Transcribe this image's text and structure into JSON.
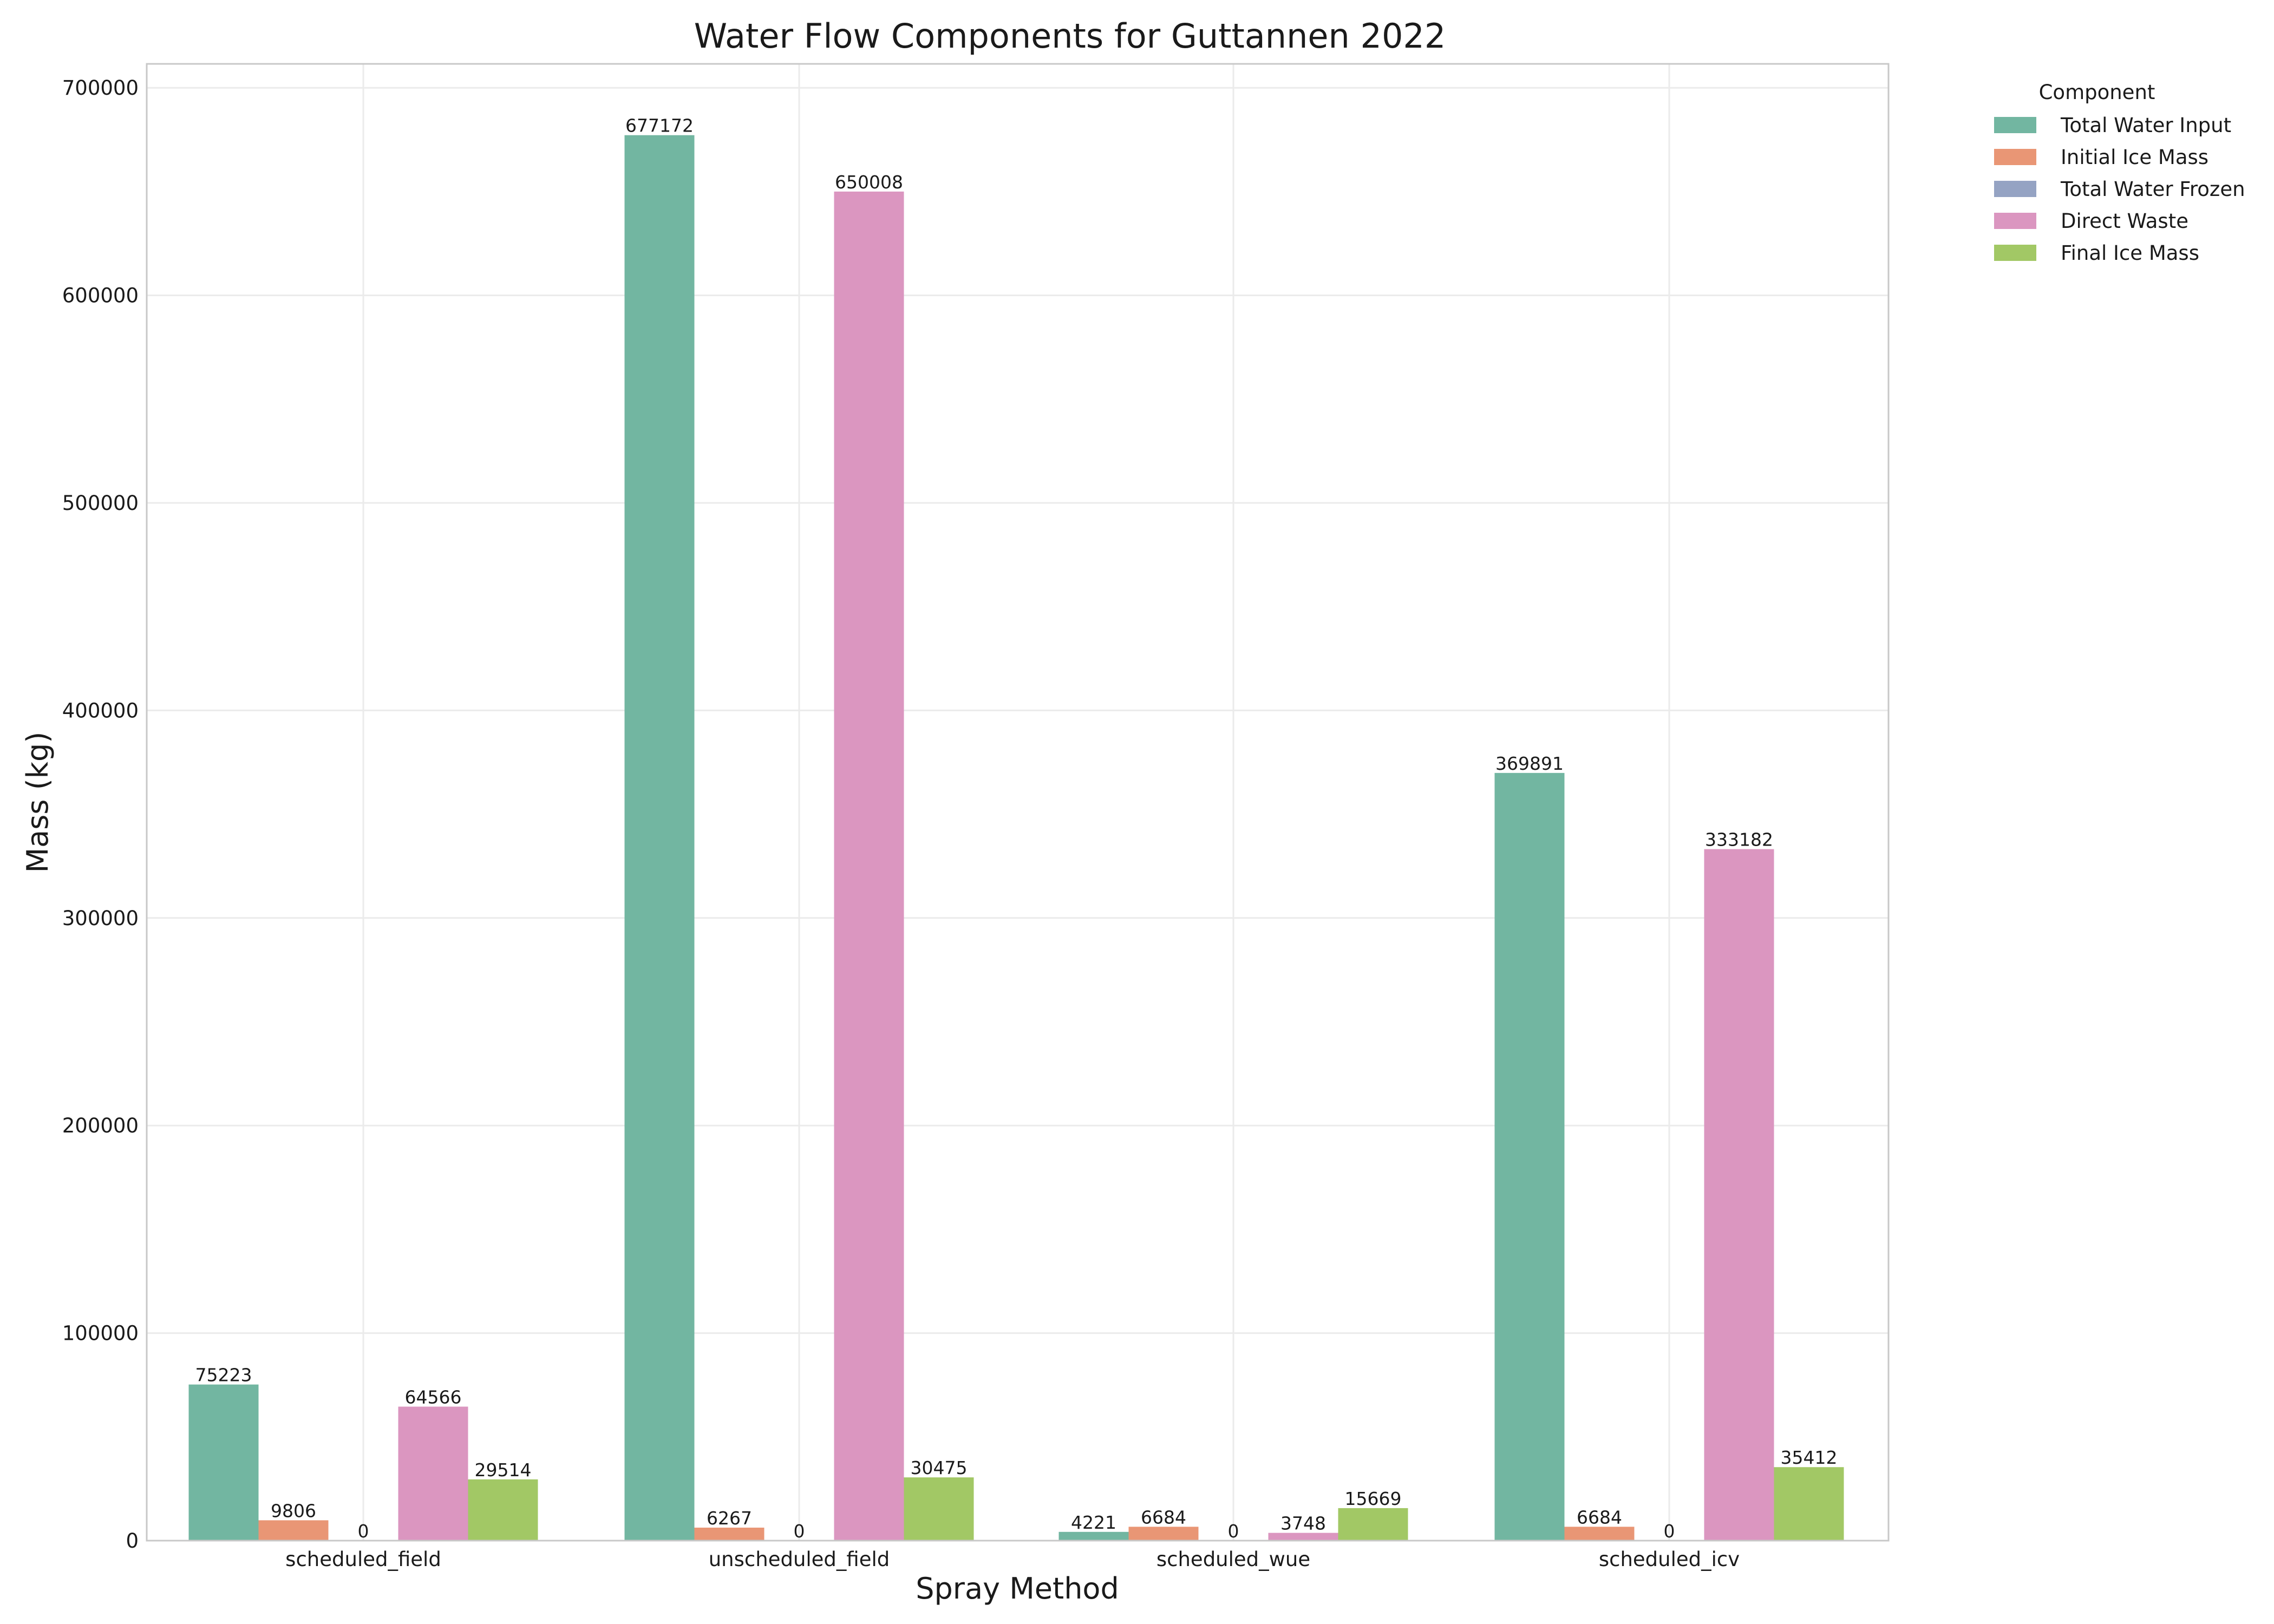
{
  "chart_data": {
    "type": "bar",
    "title": "Water Flow Components for Guttannen 2022",
    "xlabel": "Spray Method",
    "ylabel": "Mass (kg)",
    "categories": [
      "scheduled_field",
      "unscheduled_field",
      "scheduled_wue",
      "scheduled_icv"
    ],
    "ylim": [
      0,
      712000
    ],
    "yticks": [
      0,
      100000,
      200000,
      300000,
      400000,
      500000,
      600000,
      700000
    ],
    "grid": true,
    "legend": {
      "title": "Component",
      "placement": "outside-top-right"
    },
    "series": [
      {
        "name": "Total Water Input",
        "color": "#72b6a1",
        "values": [
          75223,
          677172,
          4221,
          369891
        ]
      },
      {
        "name": "Initial Ice Mass",
        "color": "#e99675",
        "values": [
          9806,
          6267,
          6684,
          6684
        ]
      },
      {
        "name": "Total Water Frozen",
        "color": "#95a3c3",
        "values": [
          0,
          0,
          0,
          0
        ]
      },
      {
        "name": "Direct Waste",
        "color": "#db96c0",
        "values": [
          64566,
          650008,
          3748,
          333182
        ]
      },
      {
        "name": "Final Ice Mass",
        "color": "#a2c865",
        "values": [
          29514,
          30475,
          15669,
          35412
        ]
      }
    ]
  }
}
